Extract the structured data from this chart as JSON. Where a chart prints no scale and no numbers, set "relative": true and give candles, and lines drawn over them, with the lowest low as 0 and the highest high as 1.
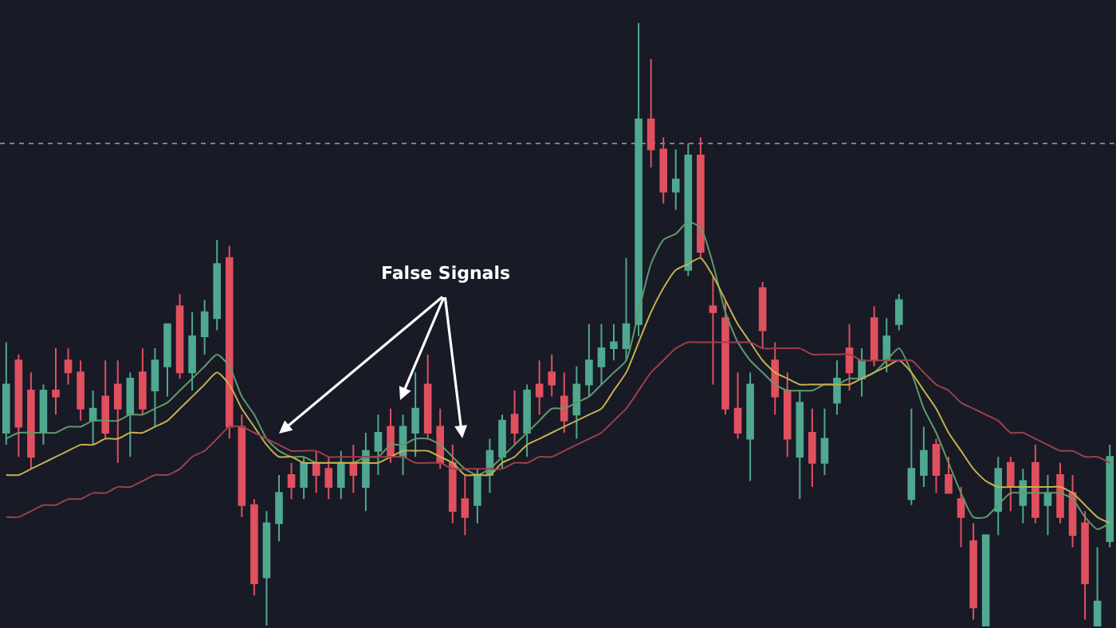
{
  "chart_data": {
    "type": "candlestick",
    "relative": true,
    "tick_labels": false,
    "categories": [
      null,
      null,
      null,
      null,
      null,
      null,
      null,
      null,
      null,
      null,
      null,
      null,
      null,
      null,
      null,
      null,
      null,
      null,
      null,
      null,
      null,
      null,
      null,
      null,
      null,
      null,
      null,
      null,
      null,
      null,
      null,
      null,
      null,
      null,
      null,
      null,
      null,
      null,
      null,
      null,
      null,
      null,
      null,
      null,
      null,
      null,
      null,
      null,
      null,
      null,
      null,
      null,
      null,
      null,
      null,
      null,
      null,
      null,
      null,
      null,
      null,
      null,
      null,
      null,
      null,
      null,
      null,
      null,
      null,
      null,
      null,
      null,
      null,
      null,
      null,
      null,
      null,
      null,
      null,
      null,
      null,
      null,
      null,
      null,
      null,
      null,
      null,
      null,
      null,
      null
    ],
    "ohlc": [
      [
        0.32,
        0.47,
        0.3,
        0.4
      ],
      [
        0.44,
        0.45,
        0.28,
        0.33
      ],
      [
        0.39,
        0.42,
        0.26,
        0.28
      ],
      [
        0.32,
        0.4,
        0.3,
        0.39
      ],
      [
        0.39,
        0.46,
        0.35,
        0.38
      ],
      [
        0.44,
        0.46,
        0.4,
        0.42
      ],
      [
        0.42,
        0.44,
        0.34,
        0.36
      ],
      [
        0.34,
        0.39,
        0.3,
        0.36
      ],
      [
        0.38,
        0.44,
        0.31,
        0.32
      ],
      [
        0.4,
        0.44,
        0.27,
        0.36
      ],
      [
        0.35,
        0.42,
        0.28,
        0.41
      ],
      [
        0.42,
        0.46,
        0.35,
        0.36
      ],
      [
        0.39,
        0.46,
        0.33,
        0.44
      ],
      [
        0.43,
        0.5,
        0.38,
        0.5
      ],
      [
        0.53,
        0.55,
        0.41,
        0.42
      ],
      [
        0.42,
        0.52,
        0.39,
        0.48
      ],
      [
        0.48,
        0.54,
        0.45,
        0.52
      ],
      [
        0.51,
        0.64,
        0.49,
        0.6
      ],
      [
        0.61,
        0.63,
        0.31,
        0.33
      ],
      [
        0.33,
        0.35,
        0.18,
        0.2
      ],
      [
        0.2,
        0.21,
        0.05,
        0.07
      ],
      [
        0.08,
        0.19,
        0.0,
        0.17
      ],
      [
        0.17,
        0.25,
        0.14,
        0.22
      ],
      [
        0.25,
        0.27,
        0.21,
        0.23
      ],
      [
        0.23,
        0.28,
        0.21,
        0.27
      ],
      [
        0.27,
        0.29,
        0.22,
        0.25
      ],
      [
        0.26,
        0.28,
        0.21,
        0.23
      ],
      [
        0.23,
        0.29,
        0.21,
        0.27
      ],
      [
        0.27,
        0.3,
        0.22,
        0.25
      ],
      [
        0.23,
        0.32,
        0.19,
        0.29
      ],
      [
        0.29,
        0.35,
        0.25,
        0.32
      ],
      [
        0.33,
        0.36,
        0.27,
        0.28
      ],
      [
        0.28,
        0.35,
        0.25,
        0.33
      ],
      [
        0.32,
        0.42,
        0.28,
        0.36
      ],
      [
        0.4,
        0.45,
        0.31,
        0.32
      ],
      [
        0.33,
        0.36,
        0.26,
        0.27
      ],
      [
        0.27,
        0.3,
        0.17,
        0.19
      ],
      [
        0.21,
        0.25,
        0.15,
        0.18
      ],
      [
        0.2,
        0.26,
        0.17,
        0.25
      ],
      [
        0.25,
        0.31,
        0.22,
        0.29
      ],
      [
        0.28,
        0.35,
        0.26,
        0.34
      ],
      [
        0.35,
        0.39,
        0.3,
        0.32
      ],
      [
        0.32,
        0.4,
        0.28,
        0.39
      ],
      [
        0.4,
        0.44,
        0.35,
        0.38
      ],
      [
        0.42,
        0.45,
        0.38,
        0.4
      ],
      [
        0.38,
        0.42,
        0.32,
        0.34
      ],
      [
        0.35,
        0.43,
        0.31,
        0.4
      ],
      [
        0.4,
        0.5,
        0.38,
        0.44
      ],
      [
        0.43,
        0.5,
        0.4,
        0.46
      ],
      [
        0.46,
        0.5,
        0.44,
        0.47
      ],
      [
        0.46,
        0.61,
        0.44,
        0.5
      ],
      [
        0.5,
        1.0,
        0.48,
        0.84
      ],
      [
        0.84,
        0.94,
        0.76,
        0.79
      ],
      [
        0.79,
        0.81,
        0.7,
        0.72
      ],
      [
        0.72,
        0.79,
        0.69,
        0.74
      ],
      [
        0.59,
        0.8,
        0.58,
        0.78
      ],
      [
        0.78,
        0.81,
        0.61,
        0.62
      ],
      [
        0.53,
        0.58,
        0.4,
        0.52
      ],
      [
        0.51,
        0.54,
        0.35,
        0.36
      ],
      [
        0.36,
        0.42,
        0.31,
        0.32
      ],
      [
        0.31,
        0.42,
        0.24,
        0.4
      ],
      [
        0.56,
        0.57,
        0.46,
        0.49
      ],
      [
        0.44,
        0.47,
        0.35,
        0.38
      ],
      [
        0.39,
        0.42,
        0.28,
        0.31
      ],
      [
        0.28,
        0.39,
        0.21,
        0.37
      ],
      [
        0.32,
        0.36,
        0.23,
        0.27
      ],
      [
        0.27,
        0.36,
        0.25,
        0.31
      ],
      [
        0.37,
        0.44,
        0.35,
        0.41
      ],
      [
        0.46,
        0.5,
        0.39,
        0.42
      ],
      [
        0.41,
        0.46,
        0.38,
        0.44
      ],
      [
        0.51,
        0.53,
        0.43,
        0.44
      ],
      [
        0.44,
        0.51,
        0.42,
        0.48
      ],
      [
        0.5,
        0.55,
        0.49,
        0.54
      ],
      [
        0.21,
        0.36,
        0.2,
        0.26
      ],
      [
        0.25,
        0.33,
        0.23,
        0.29
      ],
      [
        0.3,
        0.31,
        0.22,
        0.25
      ],
      [
        0.25,
        0.28,
        0.22,
        0.22
      ],
      [
        0.21,
        0.23,
        0.13,
        0.18
      ],
      [
        0.14,
        0.17,
        0.01,
        0.03
      ],
      [
        0.0,
        0.15,
        0.0,
        0.15
      ],
      [
        0.19,
        0.28,
        0.15,
        0.26
      ],
      [
        0.27,
        0.28,
        0.19,
        0.23
      ],
      [
        0.2,
        0.26,
        0.17,
        0.24
      ],
      [
        0.27,
        0.3,
        0.17,
        0.18
      ],
      [
        0.2,
        0.25,
        0.15,
        0.22
      ],
      [
        0.25,
        0.27,
        0.17,
        0.18
      ],
      [
        0.22,
        0.25,
        0.13,
        0.15
      ],
      [
        0.17,
        0.19,
        0.01,
        0.07
      ],
      [
        0.0,
        0.13,
        0.0,
        0.04
      ],
      [
        0.14,
        0.3,
        0.13,
        0.28
      ]
    ],
    "colors": [
      "#4fa88f",
      "#e0505f",
      "#e0505f",
      "#4fa88f",
      "#e0505f",
      "#e0505f",
      "#e0505f",
      "#4fa88f",
      "#e0505f",
      "#e0505f",
      "#4fa88f",
      "#e0505f",
      "#4fa88f",
      "#4fa88f",
      "#e0505f",
      "#4fa88f",
      "#4fa88f",
      "#4fa88f",
      "#e0505f",
      "#e0505f",
      "#e0505f",
      "#4fa88f",
      "#4fa88f",
      "#e0505f",
      "#4fa88f",
      "#e0505f",
      "#e0505f",
      "#4fa88f",
      "#e0505f",
      "#4fa88f",
      "#4fa88f",
      "#e0505f",
      "#4fa88f",
      "#4fa88f",
      "#e0505f",
      "#e0505f",
      "#e0505f",
      "#e0505f",
      "#4fa88f",
      "#4fa88f",
      "#4fa88f",
      "#e0505f",
      "#4fa88f",
      "#e0505f",
      "#e0505f",
      "#e0505f",
      "#4fa88f",
      "#4fa88f",
      "#4fa88f",
      "#4fa88f",
      "#4fa88f",
      "#4fa88f",
      "#e0505f",
      "#e0505f",
      "#4fa88f",
      "#4fa88f",
      "#e0505f",
      "#e0505f",
      "#e0505f",
      "#e0505f",
      "#4fa88f",
      "#e0505f",
      "#e0505f",
      "#e0505f",
      "#4fa88f",
      "#e0505f",
      "#4fa88f",
      "#4fa88f",
      "#e0505f",
      "#4fa88f",
      "#e0505f",
      "#4fa88f",
      "#4fa88f",
      "#4fa88f",
      "#4fa88f",
      "#e0505f",
      "#e0505f",
      "#e0505f",
      "#e0505f",
      "#4fa88f",
      "#4fa88f",
      "#e0505f",
      "#4fa88f",
      "#e0505f",
      "#4fa88f",
      "#e0505f",
      "#e0505f",
      "#e0505f",
      "#4fa88f",
      "#4fa88f"
    ],
    "series": [
      {
        "type": "line",
        "color": "#5f9a6a",
        "values": [
          0.31,
          0.32,
          0.32,
          0.32,
          0.32,
          0.33,
          0.33,
          0.34,
          0.34,
          0.34,
          0.35,
          0.35,
          0.36,
          0.37,
          0.39,
          0.41,
          0.43,
          0.45,
          0.43,
          0.38,
          0.35,
          0.31,
          0.29,
          0.28,
          0.28,
          0.27,
          0.27,
          0.27,
          0.27,
          0.28,
          0.28,
          0.3,
          0.3,
          0.31,
          0.31,
          0.3,
          0.28,
          0.26,
          0.25,
          0.26,
          0.28,
          0.3,
          0.32,
          0.34,
          0.36,
          0.36,
          0.37,
          0.38,
          0.4,
          0.42,
          0.44,
          0.52,
          0.6,
          0.64,
          0.65,
          0.67,
          0.66,
          0.6,
          0.52,
          0.47,
          0.44,
          0.42,
          0.4,
          0.39,
          0.39,
          0.39,
          0.4,
          0.4,
          0.41,
          0.41,
          0.42,
          0.44,
          0.46,
          0.42,
          0.36,
          0.32,
          0.27,
          0.22,
          0.18,
          0.18,
          0.2,
          0.22,
          0.22,
          0.22,
          0.22,
          0.22,
          0.21,
          0.18,
          0.16,
          0.17
        ]
      },
      {
        "type": "line",
        "color": "#c4b04c",
        "values": [
          0.25,
          0.25,
          0.26,
          0.27,
          0.28,
          0.29,
          0.3,
          0.3,
          0.31,
          0.31,
          0.32,
          0.32,
          0.33,
          0.34,
          0.36,
          0.38,
          0.4,
          0.42,
          0.4,
          0.36,
          0.33,
          0.3,
          0.28,
          0.28,
          0.27,
          0.27,
          0.27,
          0.27,
          0.27,
          0.27,
          0.27,
          0.28,
          0.29,
          0.29,
          0.29,
          0.28,
          0.27,
          0.25,
          0.25,
          0.25,
          0.27,
          0.28,
          0.3,
          0.31,
          0.32,
          0.33,
          0.34,
          0.35,
          0.36,
          0.39,
          0.42,
          0.47,
          0.52,
          0.56,
          0.59,
          0.6,
          0.61,
          0.58,
          0.54,
          0.5,
          0.47,
          0.44,
          0.42,
          0.41,
          0.4,
          0.4,
          0.4,
          0.4,
          0.4,
          0.41,
          0.42,
          0.43,
          0.44,
          0.42,
          0.39,
          0.36,
          0.32,
          0.29,
          0.26,
          0.24,
          0.23,
          0.23,
          0.23,
          0.23,
          0.23,
          0.23,
          0.22,
          0.2,
          0.18,
          0.17
        ]
      },
      {
        "type": "line",
        "color": "#9c4048",
        "values": [
          0.18,
          0.18,
          0.19,
          0.2,
          0.2,
          0.21,
          0.21,
          0.22,
          0.22,
          0.23,
          0.23,
          0.24,
          0.25,
          0.25,
          0.26,
          0.28,
          0.29,
          0.31,
          0.33,
          0.33,
          0.32,
          0.31,
          0.3,
          0.29,
          0.29,
          0.29,
          0.28,
          0.28,
          0.28,
          0.28,
          0.28,
          0.28,
          0.28,
          0.27,
          0.27,
          0.27,
          0.26,
          0.26,
          0.26,
          0.26,
          0.26,
          0.27,
          0.27,
          0.28,
          0.28,
          0.29,
          0.3,
          0.31,
          0.32,
          0.34,
          0.36,
          0.39,
          0.42,
          0.44,
          0.46,
          0.47,
          0.47,
          0.47,
          0.47,
          0.47,
          0.47,
          0.46,
          0.46,
          0.46,
          0.46,
          0.45,
          0.45,
          0.45,
          0.45,
          0.44,
          0.44,
          0.44,
          0.44,
          0.44,
          0.42,
          0.4,
          0.39,
          0.37,
          0.36,
          0.35,
          0.34,
          0.32,
          0.32,
          0.31,
          0.3,
          0.29,
          0.29,
          0.28,
          0.28,
          0.27
        ]
      }
    ],
    "ref_lines": [
      {
        "axis": "y",
        "value": 0.8,
        "color": "#7d808c",
        "line_style": "dotted"
      }
    ],
    "annotations": [
      "False Signals"
    ]
  }
}
